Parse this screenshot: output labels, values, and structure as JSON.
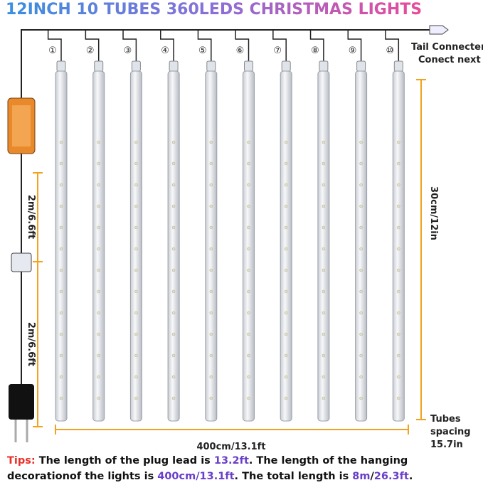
{
  "title": "12INCH 10 TUBES 360LEDS CHRISTMAS LIGHTS",
  "tubes": [
    "①",
    "②",
    "③",
    "④",
    "⑤",
    "⑥",
    "⑦",
    "⑧",
    "⑨",
    "⑩"
  ],
  "tail_connector": [
    "Tail Connecter",
    "Conect next"
  ],
  "tube_length": "30cm/12in",
  "lead_segments": [
    "2m/6.6ft",
    "2m/6.6ft"
  ],
  "total_width": "400cm/13.1ft",
  "spacing": [
    "Tubes",
    "spacing",
    "15.7in"
  ],
  "tips": [
    [
      {
        "text": "Tips:",
        "color": "#e8312a"
      },
      {
        "text": " The length of the plug lead is ",
        "color": "#111"
      },
      {
        "text": "13.2ft",
        "color": "#6a3fc8"
      },
      {
        "text": ". The length of the hanging",
        "color": "#111"
      }
    ],
    [
      {
        "text": "decorationof the lights is ",
        "color": "#111"
      },
      {
        "text": "400cm/13.1ft",
        "color": "#6a3fc8"
      },
      {
        "text": ". The total length is ",
        "color": "#111"
      },
      {
        "text": "8m",
        "color": "#6a3fc8"
      },
      {
        "text": "/",
        "color": "#111"
      },
      {
        "text": "26.3ft",
        "color": "#6a3fc8"
      },
      {
        "text": ".",
        "color": "#111"
      }
    ]
  ]
}
